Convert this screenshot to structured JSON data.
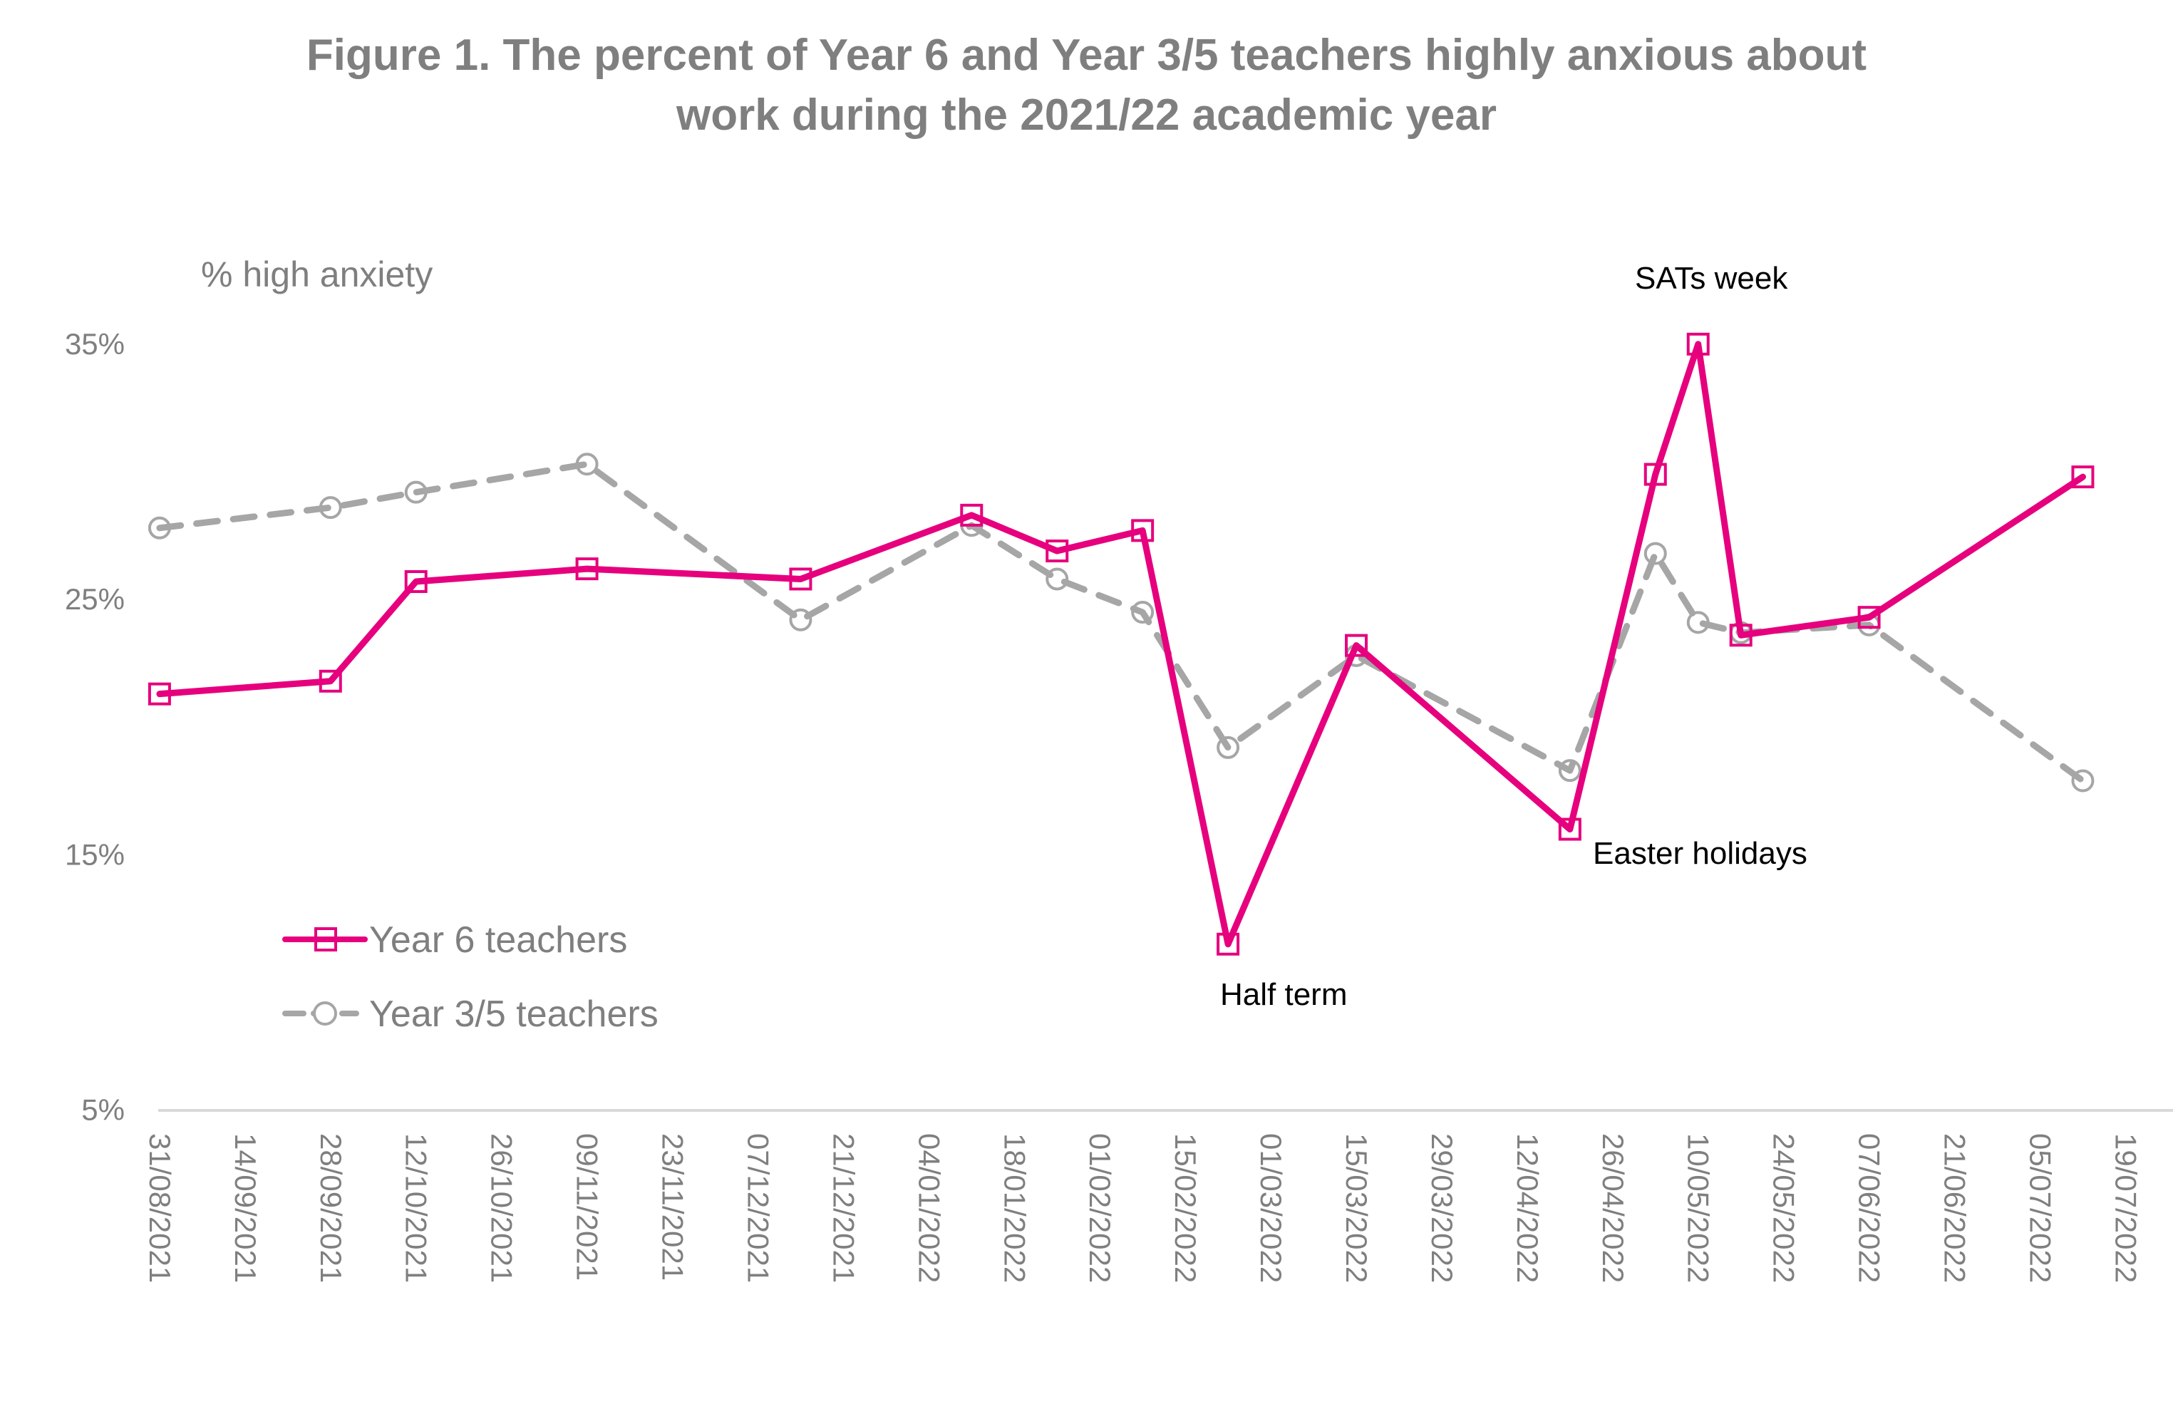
{
  "title": {
    "line1": "Figure 1. The percent of Year 6 and Year 3/5 teachers highly anxious about",
    "line2": "work during the 2021/22 academic year"
  },
  "colors": {
    "year6": "#E6007E",
    "year35": "#A6A6A6",
    "text": "#7F7F7F",
    "axis": "#D9D9D9",
    "annotation": "#000000"
  },
  "chart_data": {
    "type": "line",
    "title": "Figure 1. The percent of Year 6 and Year 3/5 teachers highly anxious about work during the 2021/22 academic year",
    "xlabel": "",
    "ylabel": "% high anxiety",
    "ylim": [
      5,
      35
    ],
    "yticks": [
      "5%",
      "15%",
      "25%",
      "35%"
    ],
    "grid": false,
    "legend_position": "inside-left",
    "xtick_labels": [
      "31/08/2021",
      "14/09/2021",
      "28/09/2021",
      "12/10/2021",
      "26/10/2021",
      "09/11/2021",
      "23/11/2021",
      "07/12/2021",
      "21/12/2021",
      "04/01/2022",
      "18/01/2022",
      "01/02/2022",
      "15/02/2022",
      "01/03/2022",
      "15/03/2022",
      "29/03/2022",
      "12/04/2022",
      "26/04/2022",
      "10/05/2022",
      "24/05/2022",
      "07/06/2022",
      "21/06/2022",
      "05/07/2022",
      "19/07/2022"
    ],
    "x": [
      "31/08/2021",
      "28/09/2021",
      "12/10/2021",
      "09/11/2021",
      "14/12/2021",
      "11/01/2022",
      "25/01/2022",
      "08/02/2022",
      "22/02/2022",
      "15/03/2022",
      "19/04/2022",
      "03/05/2022",
      "10/05/2022",
      "17/05/2022",
      "07/06/2022",
      "12/07/2022"
    ],
    "x_day_offsets": [
      0,
      28,
      42,
      70,
      105,
      133,
      147,
      161,
      175,
      196,
      231,
      245,
      252,
      259,
      280,
      315
    ],
    "series": [
      {
        "name": "Year 6 teachers",
        "marker": "square",
        "line": "solid",
        "values": [
          21.3,
          21.8,
          25.7,
          26.2,
          25.8,
          28.3,
          26.9,
          27.7,
          11.5,
          23.2,
          16.0,
          29.9,
          35.0,
          23.6,
          24.3,
          29.8
        ]
      },
      {
        "name": "Year 3/5 teachers",
        "marker": "circle",
        "line": "dashed",
        "values": [
          27.8,
          28.6,
          29.2,
          30.3,
          24.2,
          27.9,
          25.8,
          24.5,
          19.2,
          22.8,
          18.3,
          26.8,
          24.1,
          23.7,
          24.0,
          17.9
        ]
      }
    ],
    "annotations": [
      {
        "text": "SATs week",
        "near": "10/05/2022"
      },
      {
        "text": "Half term",
        "near": "22/02/2022"
      },
      {
        "text": "Easter holidays",
        "near": "19/04/2022"
      }
    ]
  },
  "legend": {
    "year6_label": "Year 6 teachers",
    "year35_label": "Year 3/5 teachers"
  }
}
